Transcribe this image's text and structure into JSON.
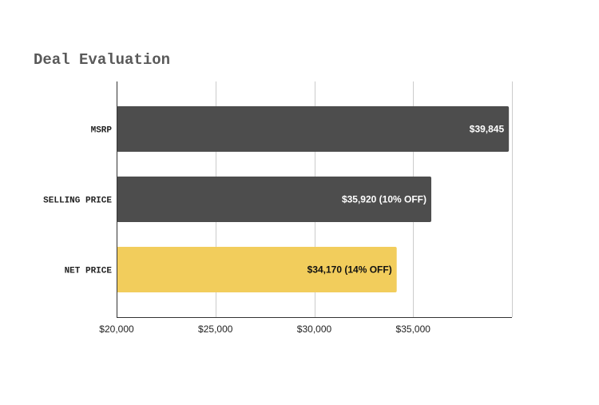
{
  "chart_data": {
    "type": "bar",
    "orientation": "horizontal",
    "title": "Deal Evaluation",
    "categories": [
      "MSRP",
      "SELLING PRICE",
      "NET PRICE"
    ],
    "values": [
      39845,
      35920,
      34170
    ],
    "data_labels": [
      "$39,845",
      "$35,920 (10% OFF)",
      "$34,170 (14% OFF)"
    ],
    "bar_colors": [
      "#4d4d4d",
      "#4d4d4d",
      "#f2cd5c"
    ],
    "label_colors": [
      "#ffffff",
      "#ffffff",
      "#111111"
    ],
    "xlim": [
      20000,
      40000
    ],
    "xticks": [
      20000,
      25000,
      30000,
      35000
    ],
    "xtick_labels": [
      "$20,000",
      "$25,000",
      "$30,000",
      "$35,000"
    ],
    "grid": true,
    "xlabel": "",
    "ylabel": ""
  }
}
